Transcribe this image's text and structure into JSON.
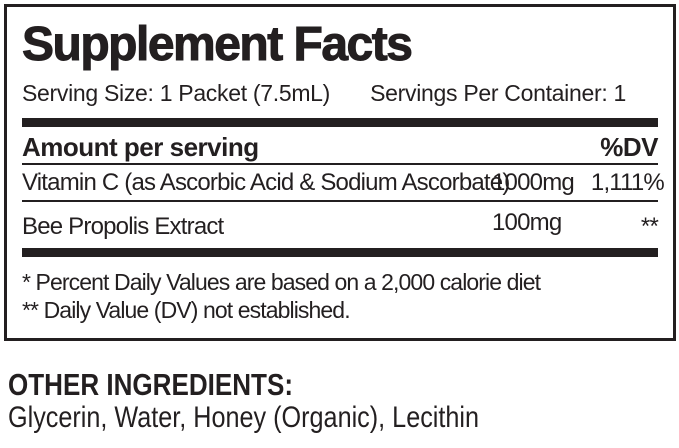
{
  "panel": {
    "title": "Supplement Facts",
    "serving_size_label": "Serving Size: 1 Packet (7.5mL)",
    "servings_per_container_label": "Servings Per Container: 1",
    "amount_header": "Amount per serving",
    "dv_header": "%DV",
    "nutrients": [
      {
        "name": "Vitamin C (as Ascorbic Acid & Sodium Ascorbate)",
        "amount": "1000mg",
        "dv": "1,111%"
      },
      {
        "name": "Bee Propolis Extract",
        "amount": "100mg",
        "dv": "**"
      }
    ],
    "footnotes": [
      "* Percent Daily Values are based on a 2,000 calorie diet",
      "** Daily Value (DV) not established."
    ]
  },
  "other_ingredients": {
    "heading": "OTHER INGREDIENTS:",
    "list": "Glycerin, Water, Honey (Organic), Lecithin"
  },
  "colors": {
    "text": "#231f20",
    "rule": "#231f20",
    "background": "#ffffff"
  }
}
